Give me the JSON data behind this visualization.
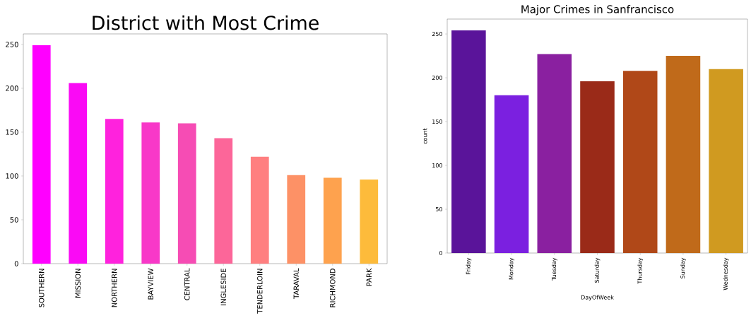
{
  "chart_data": [
    {
      "type": "bar",
      "title": "District with Most Crime",
      "categories": [
        "SOUTHERN",
        "MISSION",
        "NORTHERN",
        "BAYVIEW",
        "CENTRAL",
        "INGLESIDE",
        "TENDERLOIN",
        "TARAVAL",
        "RICHMOND",
        "PARK"
      ],
      "values": [
        249,
        206,
        165,
        161,
        160,
        143,
        122,
        101,
        98,
        96
      ],
      "colors": [
        "#ff00ff",
        "#fa0af5",
        "#ff22dd",
        "#f838c8",
        "#f64cb4",
        "#fc6699",
        "#ff7f80",
        "#fd9166",
        "#fea24e",
        "#fdbb3b"
      ],
      "ylim": [
        0,
        262
      ],
      "yticks": [
        0,
        50,
        100,
        150,
        200,
        250
      ]
    },
    {
      "type": "bar",
      "title": "Major Crimes in Sanfrancisco",
      "xlabel": "DayOfWeek",
      "ylabel": "count",
      "categories": [
        "Friday",
        "Monday",
        "Tuesday",
        "Saturday",
        "Thursday",
        "Sunday",
        "Wednesday"
      ],
      "values": [
        254,
        180,
        227,
        196,
        208,
        225,
        210
      ],
      "colors": [
        "#5a149a",
        "#7b20e0",
        "#8a20a0",
        "#9a2a18",
        "#b04818",
        "#c06a1a",
        "#d09a20"
      ],
      "ylim": [
        0,
        267
      ],
      "yticks": [
        0,
        50,
        100,
        150,
        200,
        250
      ]
    }
  ]
}
